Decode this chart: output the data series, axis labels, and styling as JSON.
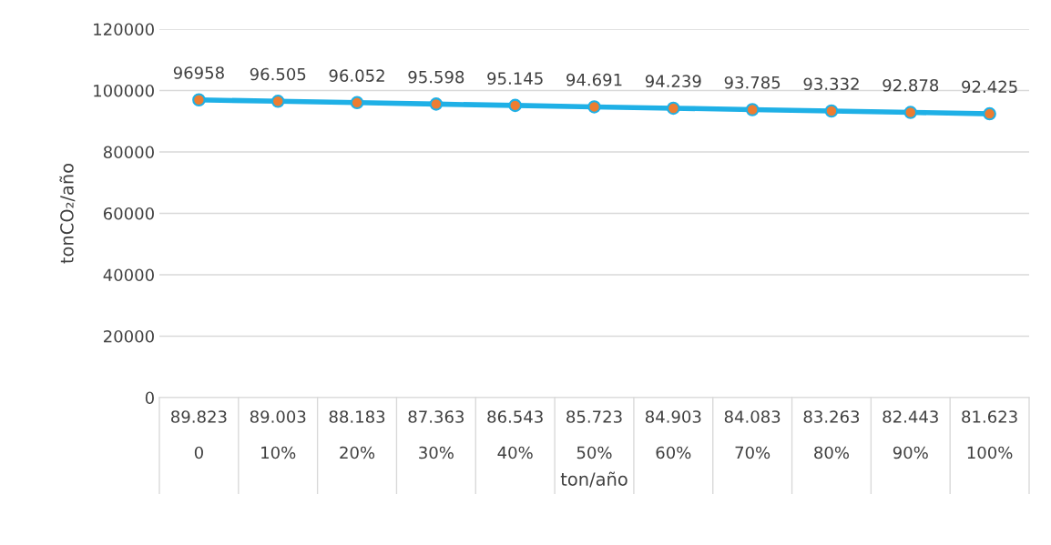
{
  "chart_data": {
    "type": "line",
    "xlabel": "ton/año",
    "ylabel": "tonCO₂/año",
    "categories": [
      "89.823\n0",
      "89.003\n10%",
      "88.183\n20%",
      "87.363\n30%",
      "86.543\n40%",
      "85.723\n50%",
      "84.903\n60%",
      "84.083\n70%",
      "83.263\n80%",
      "82.443\n90%",
      "81.623\n100%"
    ],
    "series": [
      {
        "color": "#1fb0e6",
        "values": [
          96958,
          96505,
          96052,
          95598,
          95145,
          94691,
          94239,
          93785,
          93332,
          92878,
          92425
        ],
        "value_labels": [
          "96958",
          "96.505",
          "96.052",
          "95.598",
          "95.145",
          "94.691",
          "94.239",
          "93.785",
          "93.332",
          "92.878",
          "92.425"
        ]
      }
    ],
    "ylim": [
      0,
      120000
    ],
    "yticks": [
      0,
      20000,
      40000,
      60000,
      80000,
      100000,
      120000
    ],
    "grid": "y",
    "legend": false,
    "marker": "circle",
    "line_style": "solid"
  }
}
